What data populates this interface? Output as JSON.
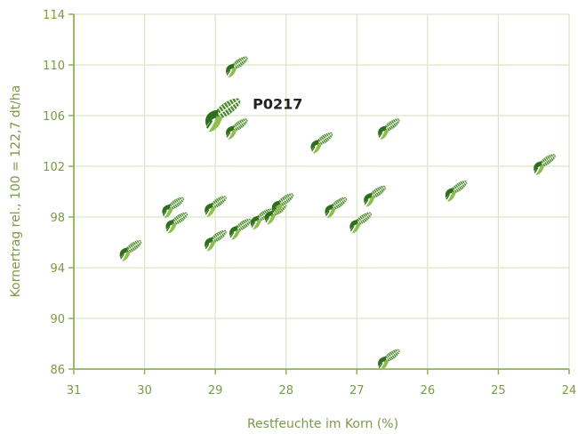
{
  "colors": {
    "axis": "#8fb05a",
    "grid": "#d9e6c4",
    "text": "#7a9a45",
    "marker": "#4a8a2a",
    "marker_dark": "#2f6e1c",
    "husk": "#8dbf4a",
    "highlight_label": "#222222"
  },
  "icons": {
    "marker": "corn-cob-icon"
  },
  "chart_data": {
    "type": "scatter",
    "title": "",
    "xlabel": "Restfeuchte im Korn (%)",
    "ylabel": "Kornertrag rel., 100 = 122,7 dt/ha",
    "xlim": [
      31,
      24
    ],
    "x_reversed": true,
    "ylim": [
      86,
      114
    ],
    "xticks": [
      31,
      30,
      29,
      28,
      27,
      26,
      25,
      24
    ],
    "yticks": [
      86,
      90,
      94,
      98,
      102,
      106,
      110,
      114
    ],
    "grid": true,
    "legend": "none",
    "points": [
      {
        "x": 30.2,
        "y": 95.5
      },
      {
        "x": 29.6,
        "y": 98.9
      },
      {
        "x": 29.55,
        "y": 97.7
      },
      {
        "x": 29.0,
        "y": 99.0
      },
      {
        "x": 29.0,
        "y": 96.3
      },
      {
        "x": 28.7,
        "y": 110.0
      },
      {
        "x": 28.9,
        "y": 106.3,
        "label": "P0217",
        "highlight": true
      },
      {
        "x": 28.7,
        "y": 105.1
      },
      {
        "x": 28.65,
        "y": 97.2
      },
      {
        "x": 28.35,
        "y": 98.0
      },
      {
        "x": 28.15,
        "y": 98.4
      },
      {
        "x": 28.05,
        "y": 99.2
      },
      {
        "x": 27.5,
        "y": 104.0
      },
      {
        "x": 27.3,
        "y": 98.9
      },
      {
        "x": 26.95,
        "y": 97.7
      },
      {
        "x": 26.75,
        "y": 99.8
      },
      {
        "x": 26.55,
        "y": 105.1
      },
      {
        "x": 26.55,
        "y": 86.9
      },
      {
        "x": 25.6,
        "y": 100.2
      },
      {
        "x": 24.35,
        "y": 102.3
      }
    ]
  }
}
